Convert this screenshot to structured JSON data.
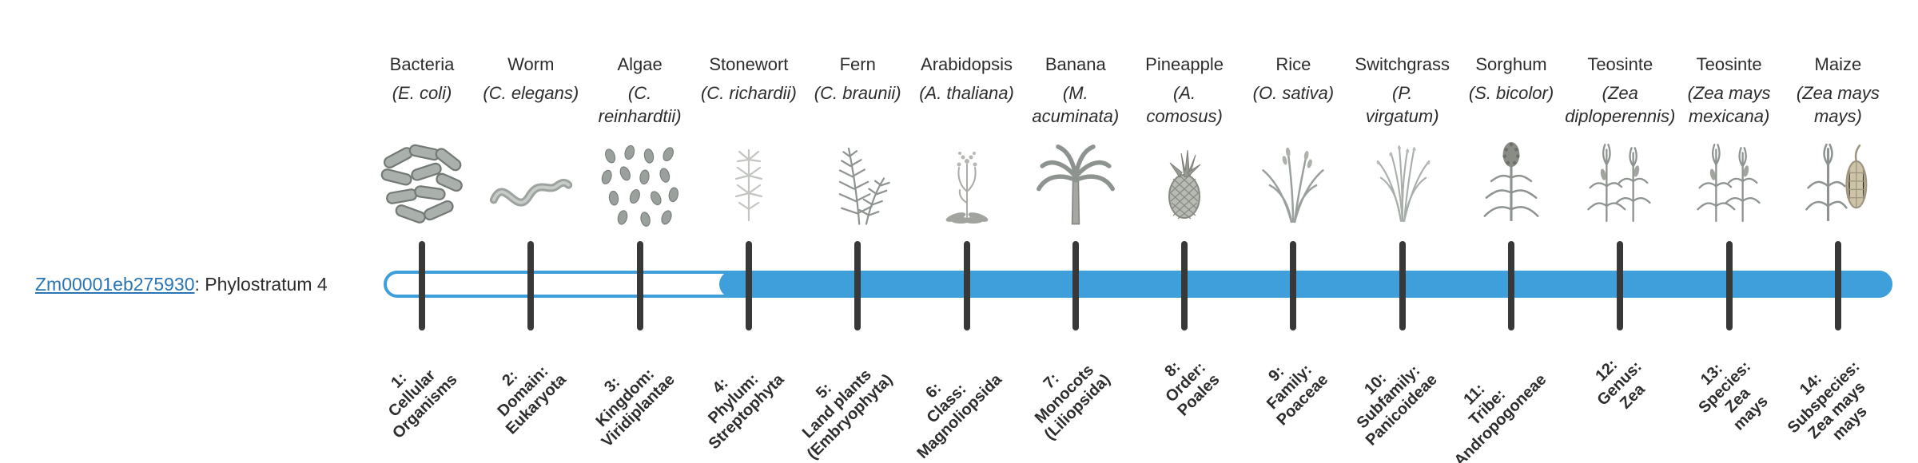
{
  "gene": {
    "id": "Zm00001eb275930",
    "suffix": ": Phylostratum 4",
    "phylostratum": 4
  },
  "colors": {
    "bar_fill": "#3f9fdb",
    "bar_outline": "#3f9fdb",
    "tick": "#383838",
    "link": "#2a76b4",
    "text": "#2d2d2d"
  },
  "taxa": [
    {
      "name": "Bacteria",
      "sci": "(E. coli)",
      "icon": "bacteria-icon",
      "stratum_label": "1:\nCellular\nOrganisms"
    },
    {
      "name": "Worm",
      "sci": "(C. elegans)",
      "icon": "worm-icon",
      "stratum_label": "2:\nDomain:\nEukaryota"
    },
    {
      "name": "Algae",
      "sci": "(C.\nreinhardtii)",
      "icon": "algae-icon",
      "stratum_label": "3:\nKingdom:\nViridiplantae"
    },
    {
      "name": "Stonewort",
      "sci": "(C. richardii)",
      "icon": "stonewort-icon",
      "stratum_label": "4:\nPhylum:\nStreptophyta"
    },
    {
      "name": "Fern",
      "sci": "(C. braunii)",
      "icon": "fern-icon",
      "stratum_label": "5:\nLand plants\n(Embryophyta)"
    },
    {
      "name": "Arabidopsis",
      "sci": "(A. thaliana)",
      "icon": "arabidopsis-icon",
      "stratum_label": "6:\nClass:\nMagnoliopsida"
    },
    {
      "name": "Banana",
      "sci": "(M.\nacuminata)",
      "icon": "banana-icon",
      "stratum_label": "7:\nMonocots\n(Liliopsida)"
    },
    {
      "name": "Pineapple",
      "sci": "(A.\ncomosus)",
      "icon": "pineapple-icon",
      "stratum_label": "8:\nOrder:\nPoales"
    },
    {
      "name": "Rice",
      "sci": "(O. sativa)",
      "icon": "rice-icon",
      "stratum_label": "9:\nFamily:\nPoaceae"
    },
    {
      "name": "Switchgrass",
      "sci": "(P.\nvirgatum)",
      "icon": "switchgrass-icon",
      "stratum_label": "10:\nSubfamily:\nPanicoideae"
    },
    {
      "name": "Sorghum",
      "sci": "(S. bicolor)",
      "icon": "sorghum-icon",
      "stratum_label": "11:\nTribe:\nAndropogoneae"
    },
    {
      "name": "Teosinte",
      "sci": "(Zea\ndiploperennis)",
      "icon": "teosinte-icon",
      "stratum_label": "12:\nGenus:\nZea"
    },
    {
      "name": "Teosinte",
      "sci": "(Zea mays\nmexicana)",
      "icon": "teosinte-icon",
      "stratum_label": "13:\nSpecies:\nZea\nmays"
    },
    {
      "name": "Maize",
      "sci": "(Zea mays\nmays)",
      "icon": "maize-icon",
      "stratum_label": "14:\nSubspecies:\nZea mays\nmays"
    }
  ]
}
